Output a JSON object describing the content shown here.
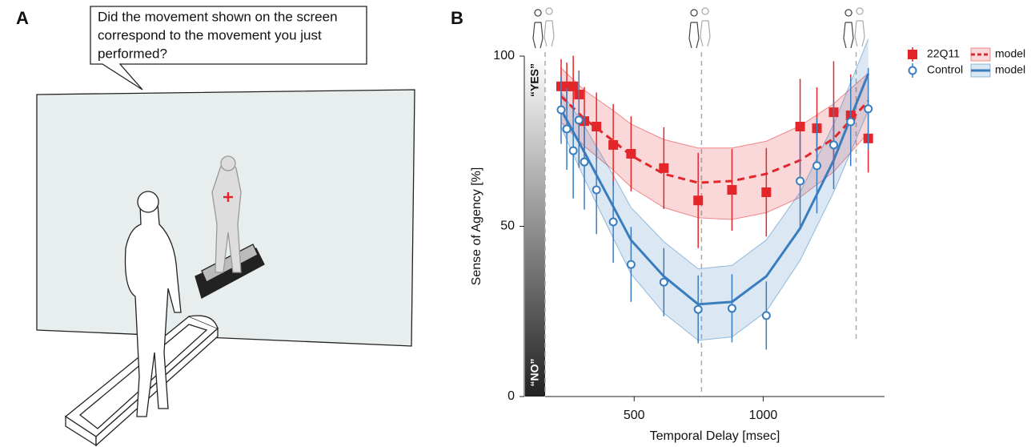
{
  "panel_labels": [
    "A",
    "B"
  ],
  "speech_bubble": [
    "Did the movement shown on the screen",
    "correspond to the movement you just",
    "performed?"
  ],
  "chart_data": {
    "type": "scatter",
    "xlabel": "Temporal Delay [msec]",
    "ylabel": "Sense of Agency [%]",
    "gradient_labels": [
      "“YES”",
      "“NO”"
    ],
    "xlim": [
      155,
      1470
    ],
    "xticks": [
      500,
      1000
    ],
    "ylim": [
      0,
      100
    ],
    "yticks": [
      0,
      50,
      100
    ],
    "vlines": [
      155,
      761,
      1360
    ],
    "series": [
      {
        "name": "22Q11",
        "color": "#e3262a",
        "marker": "square",
        "x": [
          217,
          239,
          264,
          286,
          307,
          354,
          419,
          488,
          615,
          748,
          879,
          1012,
          1143,
          1208,
          1273,
          1339,
          1407
        ],
        "values": [
          91.1,
          91.1,
          91.1,
          88.7,
          80.9,
          79.3,
          73.9,
          71.3,
          67.1,
          57.6,
          60.7,
          60.0,
          79.3,
          78.8,
          83.5,
          82.6,
          75.8
        ],
        "errors": [
          8,
          7,
          9,
          7,
          10,
          10,
          12,
          11,
          12,
          14,
          12,
          13,
          14,
          12,
          15,
          12,
          10
        ]
      },
      {
        "name": "Control",
        "color": "#3a7dbf",
        "marker": "circle",
        "x": [
          217,
          239,
          264,
          286,
          307,
          354,
          419,
          488,
          615,
          748,
          879,
          1012,
          1143,
          1208,
          1273,
          1339,
          1407
        ],
        "values": [
          84.2,
          78.6,
          72.2,
          81.2,
          68.9,
          60.7,
          51.3,
          38.8,
          33.6,
          25.6,
          25.9,
          23.8,
          63.3,
          67.8,
          73.9,
          80.7,
          84.5
        ],
        "errors": [
          10,
          12,
          14,
          14,
          14,
          13,
          12,
          11,
          10,
          10,
          10,
          10,
          14,
          14,
          13,
          13,
          12
        ]
      }
    ],
    "models": [
      {
        "name": "model",
        "color": "#e3262a",
        "style": "dashed",
        "x": [
          217,
          307,
          419,
          488,
          615,
          748,
          879,
          1012,
          1143,
          1273,
          1407
        ],
        "values": [
          88.2,
          81.6,
          75.1,
          70.8,
          65.4,
          62.8,
          63.3,
          65.4,
          69.4,
          75.8,
          86.8
        ],
        "lower": [
          80.5,
          73.5,
          66.5,
          61.5,
          55.5,
          52.5,
          52.0,
          54.0,
          58.5,
          66.0,
          77.5
        ],
        "upper": [
          96.5,
          90.0,
          84.0,
          80.0,
          75.5,
          73.0,
          73.0,
          75.0,
          79.5,
          86.0,
          95.0
        ]
      },
      {
        "name": "model",
        "color": "#3a7dbf",
        "style": "solid",
        "x": [
          217,
          307,
          419,
          488,
          615,
          748,
          879,
          1012,
          1143,
          1273,
          1407
        ],
        "values": [
          84.2,
          71.8,
          55.8,
          45.9,
          35.3,
          27.1,
          27.8,
          35.3,
          49.4,
          69.4,
          94.8
        ],
        "lower": [
          79.0,
          64.0,
          46.5,
          36.0,
          24.5,
          16.5,
          17.5,
          25.0,
          40.0,
          60.0,
          84.0
        ],
        "upper": [
          89.5,
          79.5,
          65.0,
          55.5,
          45.5,
          37.5,
          38.5,
          46.0,
          60.0,
          80.0,
          105.0
        ]
      }
    ]
  }
}
